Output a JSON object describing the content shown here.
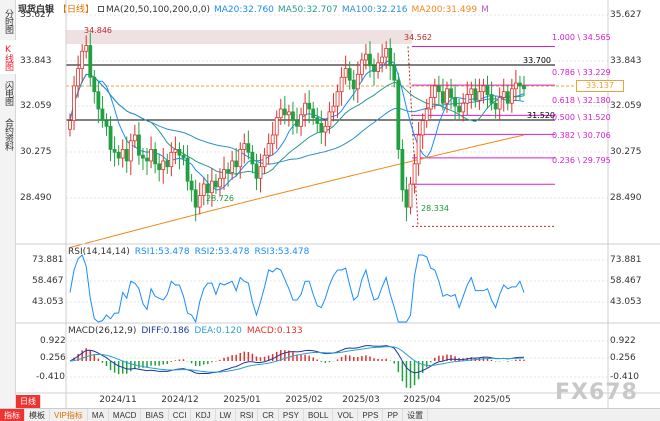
{
  "sidebar": {
    "tabs": [
      {
        "label": "分时图",
        "active": false
      },
      {
        "label": "K线图",
        "active": true
      },
      {
        "label": "闪电图",
        "active": false
      },
      {
        "label": "合约资料",
        "active": false
      }
    ]
  },
  "header": {
    "title": "现货白银",
    "period": "【日线】",
    "ma_label": "MA(20,50,100,200,0,0)",
    "ma20": "MA20:32.760",
    "ma50": "MA50:32.707",
    "ma100": "MA100:32.216",
    "ma200": "MA200:31.499",
    "m": "M"
  },
  "price_axis": {
    "left": [
      "35.627",
      "33.843",
      "32.059",
      "30.275",
      "28.490"
    ],
    "right": [
      "35.627",
      "33.843",
      "32.059",
      "30.275",
      "28.490"
    ],
    "current_price": "33.137"
  },
  "annotations": {
    "peak1": "34.846",
    "peak2": "34.562",
    "low1": "28.726",
    "low2": "28.334",
    "level_upper": "33.700",
    "level_lower": "31.520"
  },
  "fibonacci": [
    {
      "label": "1.000 \\ 34.565"
    },
    {
      "label": "0.786 \\ 33.229"
    },
    {
      "label": "0.618 \\ 32.180"
    },
    {
      "label": "0.500 \\ 31.520"
    },
    {
      "label": "0.382 \\ 30.706"
    },
    {
      "label": "0.236 \\ 29.795"
    }
  ],
  "rsi": {
    "title": "RSI(14,14,14)",
    "rsi1": "RSI1:53.478",
    "rsi2": "RSI2:53.478",
    "rsi3": "RSI3:53.478",
    "axis": [
      "73.881",
      "58.467",
      "43.053"
    ]
  },
  "macd": {
    "title": "MACD(26,12,9)",
    "diff": "DIFF:0.186",
    "dea": "DEA:0.120",
    "macd": "MACD:0.133",
    "axis": [
      "0.922",
      "0.256",
      "-0.410"
    ]
  },
  "x_axis": [
    "2024/11",
    "2024/12",
    "2025/01",
    "2025/02",
    "2025/03",
    "2025/04",
    "2025/05"
  ],
  "toolbar": {
    "period_button": "日线",
    "items": [
      "指标",
      "模板",
      "VIP指标",
      "MA",
      "MACD",
      "BIAS",
      "CCI",
      "KDJ",
      "LW",
      "RSI",
      "CR",
      "PSY",
      "BOLL",
      "VOL",
      "PPS",
      "PP",
      "设置"
    ]
  },
  "watermark": "FX678",
  "colors": {
    "up": "#e0312b",
    "down": "#20a040",
    "ma20": "#1a8cff",
    "ma50": "#2a9a8a",
    "ma100": "#2d8fd0",
    "ma200": "#f08a1a",
    "fib": "#d61fd0"
  },
  "chart_data": {
    "type": "candlestick",
    "title": "现货白银",
    "price_range": [
      28.0,
      35.9
    ],
    "series_close": [
      32.0,
      33.2,
      33.8,
      34.4,
      34.6,
      33.5,
      33.0,
      32.4,
      32.0,
      31.8,
      31.0,
      30.9,
      30.7,
      31.0,
      30.6,
      31.3,
      31.5,
      30.8,
      30.7,
      30.6,
      31.0,
      30.5,
      30.3,
      30.6,
      30.4,
      30.9,
      31.0,
      30.8,
      30.7,
      29.9,
      29.6,
      29.0,
      29.4,
      29.8,
      29.5,
      29.9,
      29.7,
      30.0,
      30.3,
      30.2,
      30.6,
      30.4,
      31.0,
      31.2,
      30.9,
      30.5,
      30.0,
      30.4,
      30.8,
      31.2,
      31.5,
      32.1,
      32.4,
      32.2,
      32.3,
      32.0,
      31.8,
      32.2,
      32.6,
      32.4,
      32.1,
      31.9,
      31.6,
      31.8,
      32.3,
      32.5,
      33.0,
      33.5,
      33.8,
      33.4,
      33.1,
      33.6,
      34.1,
      34.3,
      33.9,
      33.7,
      34.0,
      34.2,
      34.5,
      33.9,
      33.4,
      31.0,
      29.6,
      29.0,
      29.8,
      30.5,
      31.5,
      32.0,
      32.4,
      32.8,
      33.2,
      33.0,
      32.6,
      33.1,
      32.8,
      32.5,
      32.3,
      32.6,
      32.9,
      33.1,
      32.7,
      33.0,
      33.2,
      32.9,
      32.6,
      32.4,
      32.8,
      33.0,
      32.6,
      33.1,
      33.3,
      33.2,
      33.1
    ]
  }
}
